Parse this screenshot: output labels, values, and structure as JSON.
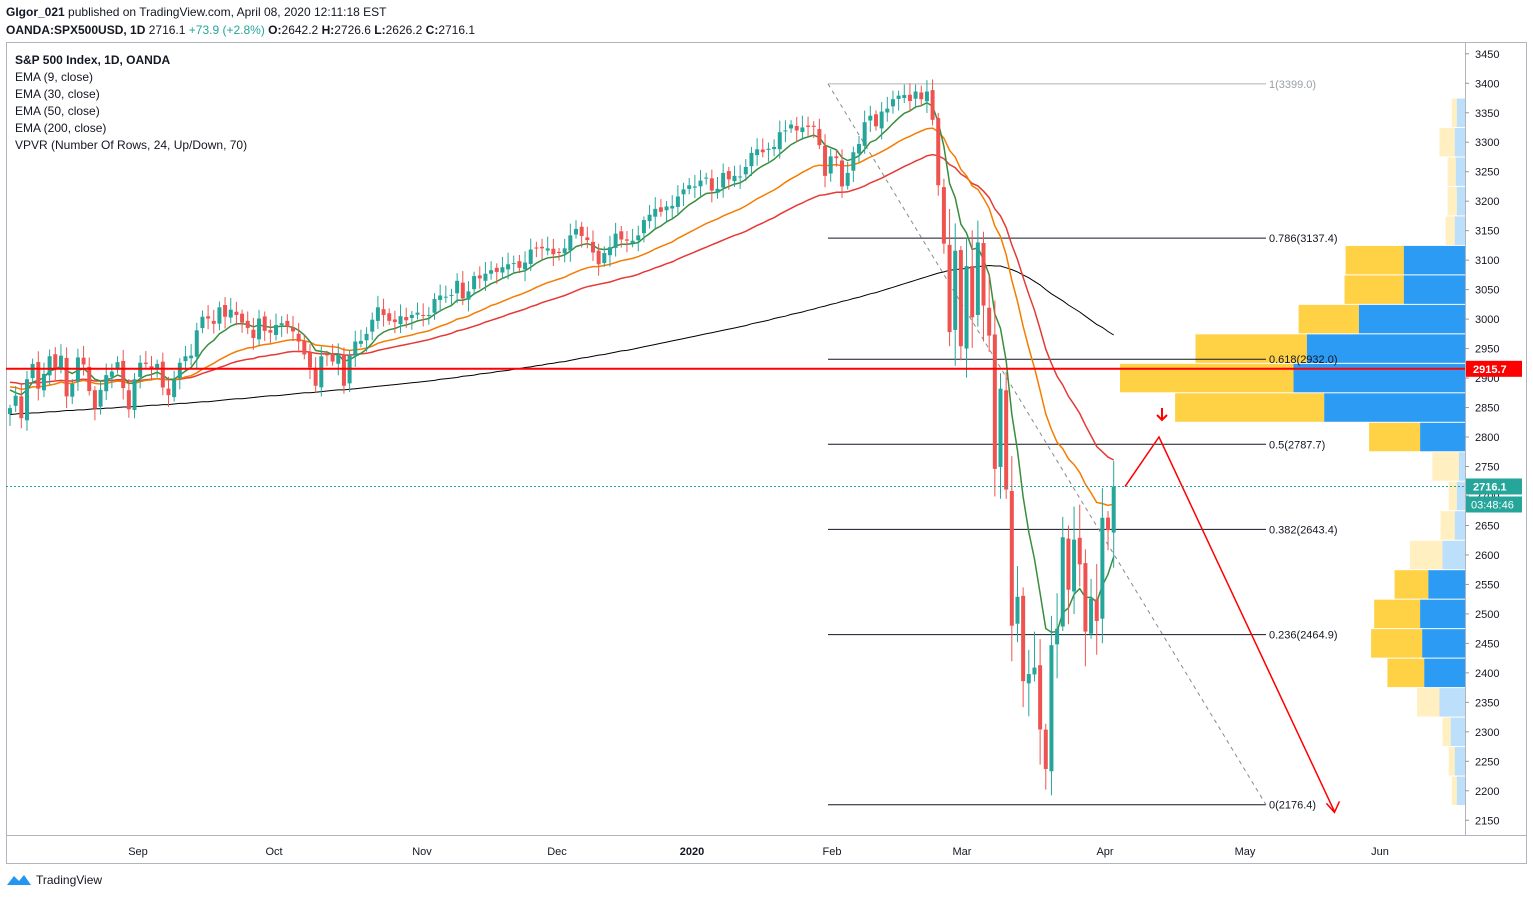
{
  "header": {
    "publisher": "GIgor_021",
    "published_text": "published on TradingView.com, April 08, 2020 12:11:18 EST",
    "symbol": "OANDA:SPX500USD, 1D",
    "last": "2716.1",
    "change": "+73.9 (+2.8%)",
    "o_label": "O:",
    "o_val": "2642.2",
    "h_label": "H:",
    "h_val": "2726.6",
    "l_label": "L:",
    "l_val": "2626.2",
    "c_label": "C:",
    "c_val": "2716.1"
  },
  "indicators": [
    "S&P 500 Index, 1D, OANDA",
    "EMA (9, close)",
    "EMA (30, close)",
    "EMA (50, close)",
    "EMA (200, close)",
    "VPVR (Number Of Rows, 24, Up/Down, 70)"
  ],
  "footer": {
    "brand": "TradingView"
  },
  "colors": {
    "up": "#26a69a",
    "down": "#ef5350",
    "ema9": "#388e3c",
    "ema30": "#f57c00",
    "ema50": "#e53935",
    "ema200": "#000000",
    "hline": "#ff0000",
    "projection": "#ff0000",
    "vp_up": "#2196f3",
    "vp_down": "#ffc107"
  },
  "chart_data": {
    "type": "candlestick",
    "title": "S&P 500 Index, 1D, OANDA",
    "ylim": [
      2125,
      3470
    ],
    "y_ticks": [
      2150,
      2200,
      2250,
      2300,
      2350,
      2400,
      2450,
      2500,
      2550,
      2600,
      2650,
      2700,
      2750,
      2800,
      2850,
      2900,
      2950,
      3000,
      3050,
      3100,
      3150,
      3200,
      3250,
      3300,
      3350,
      3400,
      3450
    ],
    "x_ticks": [
      "Sep",
      "Oct",
      "Nov",
      "Dec",
      "2020",
      "Feb",
      "Mar",
      "Apr",
      "May",
      "Jun"
    ],
    "price_label": "2716.1",
    "countdown_label": "03:48:46",
    "hline_label": "2915.7",
    "hline_value": 2915.7,
    "fib": [
      {
        "ratio": "1",
        "price": 3399.0,
        "label": "1(3399.0)"
      },
      {
        "ratio": "0.786",
        "price": 3137.4,
        "label": "0.786(3137.4)"
      },
      {
        "ratio": "0.618",
        "price": 2932.0,
        "label": "0.618(2932.0)"
      },
      {
        "ratio": "0.5",
        "price": 2787.7,
        "label": "0.5(2787.7)"
      },
      {
        "ratio": "0.382",
        "price": 2643.4,
        "label": "0.382(2643.4)"
      },
      {
        "ratio": "0.236",
        "price": 2464.9,
        "label": "0.236(2464.9)"
      },
      {
        "ratio": "0",
        "price": 2176.4,
        "label": "0(2176.4)"
      }
    ],
    "candles_close": [
      2849,
      2870,
      2832,
      2898,
      2924,
      2882,
      2907,
      2937,
      2915,
      2938,
      2869,
      2890,
      2935,
      2923,
      2878,
      2848,
      2880,
      2905,
      2911,
      2927,
      2883,
      2847,
      2898,
      2926,
      2924,
      2915,
      2924,
      2884,
      2871,
      2897,
      2926,
      2937,
      2938,
      2981,
      3004,
      3001,
      2992,
      3020,
      3004,
      3016,
      3007,
      2994,
      2985,
      2968,
      3001,
      2980,
      2977,
      2990,
      2993,
      2987,
      2979,
      2962,
      2940,
      2918,
      2887,
      2937,
      2939,
      2928,
      2939,
      2887,
      2938,
      2962,
      2963,
      2975,
      2999,
      3020,
      3007,
      2997,
      2995,
      3005,
      2998,
      3007,
      3011,
      3006,
      3007,
      3034,
      3040,
      3038,
      3041,
      3065,
      3035,
      3047,
      3073,
      3069,
      3077,
      3083,
      3080,
      3088,
      3093,
      3095,
      3087,
      3096,
      3118,
      3121,
      3120,
      3120,
      3110,
      3112,
      3120,
      3142,
      3153,
      3141,
      3134,
      3113,
      3093,
      3112,
      3122,
      3145,
      3135,
      3133,
      3133,
      3142,
      3168,
      3177,
      3187,
      3182,
      3191,
      3192,
      3208,
      3220,
      3227,
      3225,
      3235,
      3240,
      3218,
      3221,
      3248,
      3237,
      3243,
      3242,
      3258,
      3282,
      3288,
      3283,
      3289,
      3292,
      3317,
      3320,
      3330,
      3320,
      3325,
      3326,
      3326,
      3295,
      3243,
      3276,
      3273,
      3225,
      3248,
      3283,
      3297,
      3334,
      3345,
      3327,
      3352,
      3357,
      3373,
      3379,
      3380,
      3370,
      3386,
      3373,
      3386,
      3338,
      3227,
      3128,
      2978,
      3116,
      2954,
      3090,
      3003,
      3130,
      3023,
      2972,
      2746,
      2882,
      2711,
      2480,
      2529,
      2386,
      2398,
      2409,
      2304,
      2237,
      2447,
      2475,
      2630,
      2541,
      2626,
      2584,
      2470,
      2526,
      2488,
      2663,
      2642,
      2716
    ],
    "ema9_y": [
      2880,
      2875,
      2872,
      2880,
      2893,
      2896,
      2901,
      2912,
      2915,
      2920,
      2912,
      2908,
      2913,
      2916,
      2908,
      2898,
      2895,
      2897,
      2900,
      2905,
      2902,
      2891,
      2892,
      2899,
      2904,
      2906,
      2910,
      2905,
      2898,
      2898,
      2905,
      2912,
      2918,
      2931,
      2946,
      2957,
      2964,
      2975,
      2981,
      2988,
      2992,
      2992,
      2991,
      2987,
      2990,
      2988,
      2986,
      2987,
      2988,
      2988,
      2986,
      2981,
      2973,
      2962,
      2947,
      2945,
      2944,
      2940,
      2940,
      2929,
      2931,
      2937,
      2942,
      2949,
      2959,
      2971,
      2978,
      2982,
      2984,
      2988,
      2990,
      2993,
      2997,
      2999,
      3001,
      3008,
      3014,
      3019,
      3023,
      3032,
      3032,
      3035,
      3043,
      3048,
      3054,
      3060,
      3064,
      3069,
      3073,
      3078,
      3080,
      3082,
      3088,
      3095,
      3100,
      3104,
      3105,
      3106,
      3109,
      3115,
      3123,
      3126,
      3128,
      3125,
      3119,
      3118,
      3119,
      3124,
      3127,
      3127,
      3128,
      3130,
      3138,
      3145,
      3153,
      3158,
      3165,
      3170,
      3177,
      3186,
      3194,
      3200,
      3207,
      3213,
      3214,
      3215,
      3221,
      3225,
      3229,
      3231,
      3237,
      3246,
      3254,
      3260,
      3265,
      3271,
      3280,
      3288,
      3296,
      3301,
      3306,
      3309,
      3312,
      3308,
      3295,
      3291,
      3287,
      3274,
      3269,
      3272,
      3277,
      3288,
      3300,
      3304,
      3313,
      3322,
      3332,
      3341,
      3349,
      3353,
      3360,
      3362,
      3367,
      3361,
      3334,
      3293,
      3230,
      3206,
      3161,
      3146,
      3118,
      3121,
      3101,
      3075,
      3009,
      2984,
      2929,
      2839,
      2777,
      2699,
      2639,
      2593,
      2535,
      2475,
      2469,
      2470,
      2502,
      2510,
      2533,
      2543,
      2528,
      2528,
      2520,
      2548,
      2567,
      2597
    ],
    "ema30_y": [
      2885,
      2884,
      2881,
      2882,
      2885,
      2885,
      2886,
      2888,
      2890,
      2893,
      2891,
      2891,
      2894,
      2896,
      2894,
      2891,
      2890,
      2891,
      2893,
      2895,
      2894,
      2891,
      2891,
      2894,
      2896,
      2897,
      2899,
      2898,
      2897,
      2897,
      2899,
      2902,
      2904,
      2909,
      2915,
      2920,
      2925,
      2931,
      2936,
      2941,
      2945,
      2948,
      2951,
      2952,
      2955,
      2957,
      2958,
      2960,
      2962,
      2964,
      2965,
      2965,
      2963,
      2961,
      2956,
      2955,
      2954,
      2953,
      2952,
      2948,
      2947,
      2948,
      2949,
      2951,
      2954,
      2959,
      2962,
      2964,
      2966,
      2969,
      2971,
      2973,
      2976,
      2978,
      2980,
      2984,
      2988,
      2991,
      2995,
      3000,
      3002,
      3005,
      3010,
      3014,
      3018,
      3023,
      3026,
      3030,
      3034,
      3038,
      3041,
      3045,
      3049,
      3054,
      3058,
      3062,
      3065,
      3068,
      3071,
      3076,
      3080,
      3084,
      3087,
      3089,
      3089,
      3091,
      3093,
      3096,
      3099,
      3101,
      3103,
      3106,
      3110,
      3114,
      3119,
      3123,
      3127,
      3131,
      3137,
      3142,
      3147,
      3152,
      3157,
      3162,
      3166,
      3170,
      3175,
      3179,
      3183,
      3187,
      3192,
      3198,
      3204,
      3209,
      3214,
      3219,
      3225,
      3232,
      3238,
      3243,
      3249,
      3254,
      3259,
      3261,
      3260,
      3261,
      3262,
      3260,
      3260,
      3262,
      3265,
      3270,
      3275,
      3279,
      3284,
      3289,
      3295,
      3301,
      3306,
      3310,
      3315,
      3319,
      3323,
      3324,
      3318,
      3307,
      3286,
      3275,
      3254,
      3243,
      3226,
      3220,
      3205,
      3188,
      3158,
      3140,
      3109,
      3066,
      3030,
      2988,
      2951,
      2917,
      2879,
      2839,
      2813,
      2791,
      2780,
      2763,
      2753,
      2740,
      2720,
      2705,
      2689,
      2687,
      2684,
      2686
    ],
    "ema50_y": [
      2893,
      2892,
      2890,
      2891,
      2892,
      2892,
      2893,
      2894,
      2895,
      2896,
      2895,
      2895,
      2897,
      2898,
      2897,
      2895,
      2895,
      2895,
      2896,
      2897,
      2897,
      2895,
      2895,
      2896,
      2897,
      2898,
      2899,
      2898,
      2897,
      2897,
      2898,
      2900,
      2901,
      2904,
      2908,
      2911,
      2914,
      2918,
      2921,
      2925,
      2928,
      2930,
      2932,
      2933,
      2936,
      2937,
      2939,
      2940,
      2942,
      2944,
      2945,
      2945,
      2945,
      2944,
      2942,
      2941,
      2941,
      2941,
      2941,
      2939,
      2939,
      2940,
      2941,
      2942,
      2944,
      2947,
      2949,
      2951,
      2953,
      2955,
      2957,
      2959,
      2961,
      2963,
      2965,
      2968,
      2971,
      2973,
      2976,
      2980,
      2982,
      2985,
      2988,
      2991,
      2995,
      2998,
      3001,
      3004,
      3008,
      3011,
      3014,
      3017,
      3021,
      3024,
      3028,
      3031,
      3034,
      3037,
      3040,
      3044,
      3048,
      3052,
      3055,
      3057,
      3059,
      3061,
      3063,
      3066,
      3069,
      3071,
      3073,
      3076,
      3080,
      3083,
      3087,
      3090,
      3094,
      3097,
      3102,
      3106,
      3110,
      3114,
      3118,
      3122,
      3126,
      3130,
      3134,
      3138,
      3142,
      3145,
      3149,
      3154,
      3159,
      3163,
      3168,
      3172,
      3178,
      3183,
      3188,
      3193,
      3197,
      3202,
      3206,
      3210,
      3211,
      3213,
      3215,
      3215,
      3216,
      3219,
      3222,
      3226,
      3231,
      3235,
      3239,
      3244,
      3249,
      3254,
      3259,
      3263,
      3268,
      3272,
      3277,
      3279,
      3277,
      3272,
      3262,
      3257,
      3246,
      3240,
      3230,
      3226,
      3217,
      3206,
      3187,
      3175,
      3155,
      3126,
      3101,
      3071,
      3042,
      3015,
      2983,
      2949,
      2925,
      2903,
      2888,
      2869,
      2855,
      2840,
      2820,
      2802,
      2784,
      2775,
      2766,
      2761
    ],
    "ema200_y": [
      2838,
      2839,
      2840,
      2840,
      2841,
      2841,
      2842,
      2843,
      2843,
      2844,
      2845,
      2845,
      2846,
      2846,
      2847,
      2848,
      2848,
      2849,
      2849,
      2850,
      2851,
      2851,
      2852,
      2852,
      2853,
      2854,
      2854,
      2855,
      2855,
      2856,
      2857,
      2857,
      2858,
      2859,
      2860,
      2860,
      2861,
      2862,
      2863,
      2864,
      2865,
      2865,
      2866,
      2867,
      2868,
      2869,
      2870,
      2870,
      2871,
      2872,
      2873,
      2874,
      2875,
      2875,
      2876,
      2877,
      2878,
      2879,
      2880,
      2880,
      2881,
      2882,
      2883,
      2884,
      2885,
      2886,
      2887,
      2888,
      2889,
      2890,
      2891,
      2892,
      2893,
      2894,
      2895,
      2896,
      2898,
      2899,
      2900,
      2901,
      2903,
      2904,
      2905,
      2907,
      2908,
      2909,
      2911,
      2912,
      2913,
      2915,
      2916,
      2918,
      2919,
      2921,
      2922,
      2924,
      2925,
      2927,
      2928,
      2930,
      2932,
      2934,
      2935,
      2937,
      2939,
      2940,
      2942,
      2944,
      2946,
      2947,
      2949,
      2951,
      2953,
      2955,
      2957,
      2959,
      2961,
      2963,
      2965,
      2967,
      2969,
      2971,
      2973,
      2975,
      2977,
      2979,
      2981,
      2983,
      2985,
      2987,
      2989,
      2992,
      2994,
      2996,
      2998,
      3001,
      3003,
      3005,
      3008,
      3010,
      3012,
      3015,
      3017,
      3020,
      3022,
      3025,
      3027,
      3030,
      3032,
      3035,
      3037,
      3040,
      3043,
      3045,
      3048,
      3051,
      3054,
      3057,
      3060,
      3063,
      3066,
      3069,
      3072,
      3075,
      3078,
      3080,
      3083,
      3084,
      3085,
      3086,
      3088,
      3089,
      3090,
      3091,
      3090,
      3090,
      3087,
      3084,
      3080,
      3075,
      3070,
      3064,
      3058,
      3050,
      3043,
      3037,
      3031,
      3024,
      3018,
      3012,
      3005,
      2998,
      2991,
      2986,
      2979,
      2973
    ],
    "projection": [
      {
        "t": 197,
        "price": 2716
      },
      {
        "t": 203,
        "price": 2800
      },
      {
        "t": 234,
        "price": 2165
      }
    ],
    "volume_profile": [
      {
        "row_low": 2175,
        "row_high": 2225,
        "up": 8,
        "down": 5
      },
      {
        "row_low": 2225,
        "row_high": 2275,
        "up": 10,
        "down": 6
      },
      {
        "row_low": 2275,
        "row_high": 2325,
        "up": 14,
        "down": 8
      },
      {
        "row_low": 2325,
        "row_high": 2375,
        "up": 25,
        "down": 22
      },
      {
        "row_low": 2375,
        "row_high": 2425,
        "up": 40,
        "down": 36
      },
      {
        "row_low": 2425,
        "row_high": 2475,
        "up": 42,
        "down": 50
      },
      {
        "row_low": 2475,
        "row_high": 2525,
        "up": 44,
        "down": 45
      },
      {
        "row_low": 2525,
        "row_high": 2575,
        "up": 36,
        "down": 33
      },
      {
        "row_low": 2575,
        "row_high": 2625,
        "up": 22,
        "down": 32
      },
      {
        "row_low": 2625,
        "row_high": 2675,
        "up": 10,
        "down": 14
      },
      {
        "row_low": 2675,
        "row_high": 2725,
        "up": 8,
        "down": 8
      },
      {
        "row_low": 2725,
        "row_high": 2775,
        "up": 6,
        "down": 26
      },
      {
        "row_low": 2775,
        "row_high": 2825,
        "up": 44,
        "down": 50
      },
      {
        "row_low": 2825,
        "row_high": 2875,
        "up": 138,
        "down": 146
      },
      {
        "row_low": 2875,
        "row_high": 2925,
        "up": 168,
        "down": 170
      },
      {
        "row_low": 2925,
        "row_high": 2975,
        "up": 155,
        "down": 109
      },
      {
        "row_low": 2975,
        "row_high": 3025,
        "up": 104,
        "down": 59
      },
      {
        "row_low": 3025,
        "row_high": 3075,
        "up": 60,
        "down": 58
      },
      {
        "row_low": 3075,
        "row_high": 3125,
        "up": 60,
        "down": 57
      },
      {
        "row_low": 3125,
        "row_high": 3175,
        "up": 10,
        "down": 9
      },
      {
        "row_low": 3175,
        "row_high": 3225,
        "up": 8,
        "down": 9
      },
      {
        "row_low": 3225,
        "row_high": 3275,
        "up": 9,
        "down": 8
      },
      {
        "row_low": 3275,
        "row_high": 3325,
        "up": 10,
        "down": 15
      },
      {
        "row_low": 3325,
        "row_high": 3375,
        "up": 8,
        "down": 5
      }
    ]
  }
}
